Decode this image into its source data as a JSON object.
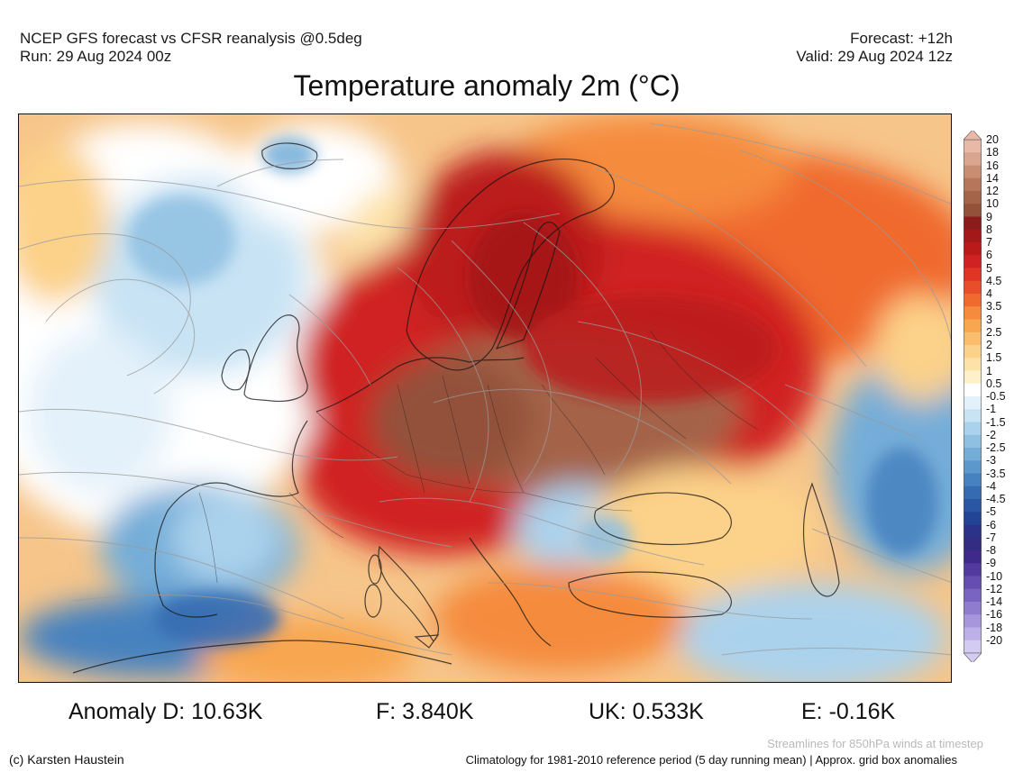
{
  "header": {
    "line1": "NCEP GFS forecast vs CFSR reanalysis @0.5deg",
    "line2": "Run: 29 Aug 2024 00z",
    "forecast": "Forecast: +12h",
    "valid": "Valid: 29 Aug 2024 12z"
  },
  "title": "Temperature anomaly 2m (°C)",
  "colorbar": {
    "levels": [
      {
        "label": "20",
        "color": "#e8b9a6"
      },
      {
        "label": "18",
        "color": "#d9a58f"
      },
      {
        "label": "16",
        "color": "#c98d73"
      },
      {
        "label": "14",
        "color": "#b7765b"
      },
      {
        "label": "12",
        "color": "#a4644a"
      },
      {
        "label": "10",
        "color": "#93513a"
      },
      {
        "label": "9",
        "color": "#8c1c1c"
      },
      {
        "label": "8",
        "color": "#a31818"
      },
      {
        "label": "7",
        "color": "#bb1a1a"
      },
      {
        "label": "6",
        "color": "#d02222"
      },
      {
        "label": "5",
        "color": "#e03424"
      },
      {
        "label": "4.5",
        "color": "#e94e2a"
      },
      {
        "label": "4",
        "color": "#f06a2f"
      },
      {
        "label": "3.5",
        "color": "#f58b3c"
      },
      {
        "label": "3",
        "color": "#f8a650"
      },
      {
        "label": "2.5",
        "color": "#fabd6d"
      },
      {
        "label": "2",
        "color": "#fcd189"
      },
      {
        "label": "1.5",
        "color": "#fde2a8"
      },
      {
        "label": "1",
        "color": "#fef0c8"
      },
      {
        "label": "0.5",
        "color": "#ffffff"
      },
      {
        "label": "-0.5",
        "color": "#e3f1fa"
      },
      {
        "label": "-1",
        "color": "#c8e3f4"
      },
      {
        "label": "-1.5",
        "color": "#abd2ec"
      },
      {
        "label": "-2",
        "color": "#8fc0e2"
      },
      {
        "label": "-2.5",
        "color": "#74add8"
      },
      {
        "label": "-3",
        "color": "#5c98cc"
      },
      {
        "label": "-3.5",
        "color": "#4682bf"
      },
      {
        "label": "-4",
        "color": "#356cb1"
      },
      {
        "label": "-4.5",
        "color": "#2a57a3"
      },
      {
        "label": "-5",
        "color": "#234395"
      },
      {
        "label": "-6",
        "color": "#2a3389"
      },
      {
        "label": "-7",
        "color": "#332c82"
      },
      {
        "label": "-8",
        "color": "#3f2a8c"
      },
      {
        "label": "-9",
        "color": "#523a9e"
      },
      {
        "label": "-10",
        "color": "#654eb0"
      },
      {
        "label": "-12",
        "color": "#7a64c1"
      },
      {
        "label": "-14",
        "color": "#907ccf"
      },
      {
        "label": "-16",
        "color": "#a796dc"
      },
      {
        "label": "-18",
        "color": "#bdb0e8"
      },
      {
        "label": "-20",
        "color": "#d4cbf3"
      }
    ]
  },
  "stats": {
    "d": "Anomaly D: 10.63K",
    "f": "F: 3.840K",
    "uk": "UK: 0.533K",
    "e": "E: -0.16K"
  },
  "footer": {
    "credit": "(c) Karsten Haustein",
    "streamlines": "Streamlines for 850hPa winds at timestep",
    "climatology": "Climatology for 1981-2010 reference period (5 day running mean) | Approx. grid box anomalies"
  }
}
